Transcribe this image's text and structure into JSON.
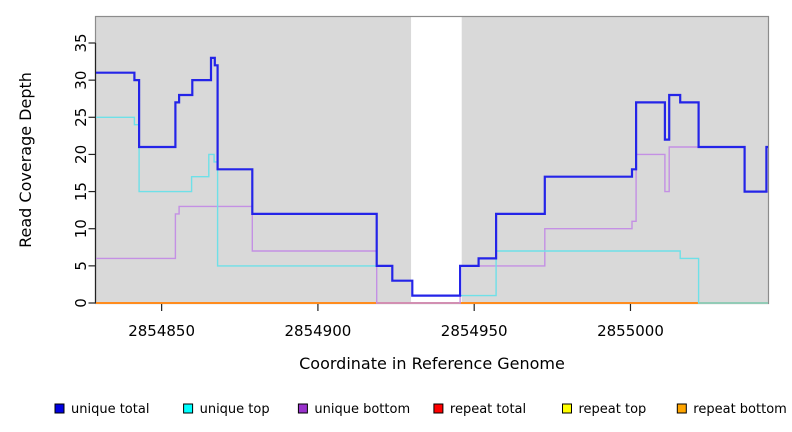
{
  "figure": {
    "xlabel": "Coordinate in Reference Genome",
    "ylabel": "Read Coverage Depth"
  },
  "chart_data": {
    "type": "line",
    "subtype": "step-after-coverage-plot",
    "title": "",
    "xlabel": "Coordinate in Reference Genome",
    "ylabel": "Read Coverage Depth",
    "xlim": [
      2854829,
      2855044
    ],
    "ylim": [
      0,
      38.5
    ],
    "x_ticks": [
      2854850,
      2854900,
      2854950,
      2855000
    ],
    "y_ticks": [
      0,
      5,
      10,
      15,
      20,
      25,
      30,
      35
    ],
    "grid": false,
    "plot_bg_color": "#d9d9d9",
    "gap_band": {
      "x0": 2854929.8,
      "x1": 2854946.0,
      "color": "#ffffff"
    },
    "legend_position": "bottom",
    "series": [
      {
        "name": "repeat total",
        "legend_color": "#ff0000",
        "line_color": "#e02020",
        "line_width": 1.2,
        "steps": [
          [
            2854829,
            0
          ]
        ]
      },
      {
        "name": "repeat top",
        "legend_color": "#ffff00",
        "line_color": "#ffe800",
        "line_width": 1.2,
        "steps": [
          [
            2854829,
            0
          ]
        ]
      },
      {
        "name": "repeat bottom",
        "legend_color": "#ffa500",
        "line_color": "#ff8c1e",
        "line_width": 2.0,
        "steps": [
          [
            2854829,
            0
          ]
        ]
      },
      {
        "name": "unique bottom",
        "legend_color": "#9932cc",
        "line_color": "#c490e4",
        "line_width": 1.4,
        "steps": [
          [
            2854829,
            6
          ],
          [
            2854854.4,
            12
          ],
          [
            2854855.6,
            13
          ],
          [
            2854879,
            7
          ],
          [
            2854918.8,
            0
          ],
          [
            2854945.5,
            5
          ],
          [
            2854972.6,
            10
          ],
          [
            2855000.5,
            11
          ],
          [
            2855001.8,
            20
          ],
          [
            2855011,
            15
          ],
          [
            2855012.4,
            21
          ],
          [
            2855036.5,
            15
          ]
        ]
      },
      {
        "name": "unique top",
        "legend_color": "#00ffff",
        "line_color": "#6ee0e8",
        "line_width": 1.4,
        "steps": [
          [
            2854829,
            25
          ],
          [
            2854841.3,
            24
          ],
          [
            2854842.8,
            15
          ],
          [
            2854859.6,
            17
          ],
          [
            2854865.1,
            20
          ],
          [
            2854866.8,
            19
          ],
          [
            2854867.9,
            5
          ],
          [
            2854923.8,
            3
          ],
          [
            2854930.2,
            1
          ],
          [
            2854957,
            7
          ],
          [
            2855015.9,
            6
          ],
          [
            2855021.8,
            0
          ]
        ]
      },
      {
        "name": "unique total",
        "legend_color": "#0000e0",
        "line_color": "#2424e8",
        "line_width": 2.2,
        "steps": [
          [
            2854829,
            31
          ],
          [
            2854841.3,
            30
          ],
          [
            2854842.8,
            21
          ],
          [
            2854854.4,
            27
          ],
          [
            2854855.6,
            28
          ],
          [
            2854859.8,
            30
          ],
          [
            2854865.8,
            33
          ],
          [
            2854867,
            32
          ],
          [
            2854867.9,
            18
          ],
          [
            2854879,
            12
          ],
          [
            2854918.8,
            5
          ],
          [
            2854923.8,
            3
          ],
          [
            2854930.2,
            1
          ],
          [
            2854945.5,
            5
          ],
          [
            2854951.4,
            6
          ],
          [
            2854957,
            12
          ],
          [
            2854972.6,
            17
          ],
          [
            2855000.5,
            18
          ],
          [
            2855001.8,
            27
          ],
          [
            2855011,
            22
          ],
          [
            2855012.4,
            28
          ],
          [
            2855015.9,
            27
          ],
          [
            2855021.8,
            21
          ],
          [
            2855036.5,
            15
          ],
          [
            2855043.5,
            21
          ]
        ]
      }
    ],
    "legend_order": [
      "unique total",
      "unique top",
      "unique bottom",
      "repeat total",
      "repeat top",
      "repeat bottom"
    ]
  }
}
